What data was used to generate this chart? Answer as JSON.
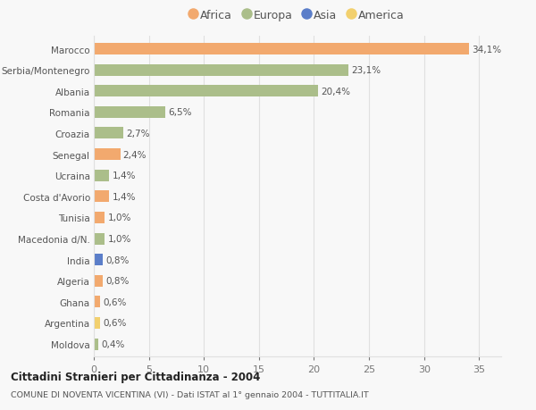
{
  "countries": [
    "Marocco",
    "Serbia/Montenegro",
    "Albania",
    "Romania",
    "Croazia",
    "Senegal",
    "Ucraina",
    "Costa d'Avorio",
    "Tunisia",
    "Macedonia d/N.",
    "India",
    "Algeria",
    "Ghana",
    "Argentina",
    "Moldova"
  ],
  "values": [
    34.1,
    23.1,
    20.4,
    6.5,
    2.7,
    2.4,
    1.4,
    1.4,
    1.0,
    1.0,
    0.8,
    0.8,
    0.6,
    0.6,
    0.4
  ],
  "labels": [
    "34,1%",
    "23,1%",
    "20,4%",
    "6,5%",
    "2,7%",
    "2,4%",
    "1,4%",
    "1,4%",
    "1,0%",
    "1,0%",
    "0,8%",
    "0,8%",
    "0,6%",
    "0,6%",
    "0,4%"
  ],
  "continents": [
    "Africa",
    "Europa",
    "Europa",
    "Europa",
    "Europa",
    "Africa",
    "Europa",
    "Africa",
    "Africa",
    "Europa",
    "Asia",
    "Africa",
    "Africa",
    "America",
    "Europa"
  ],
  "colors": {
    "Africa": "#F2A96E",
    "Europa": "#ABBE8A",
    "Asia": "#5B7EC9",
    "America": "#F2D06E"
  },
  "legend_order": [
    "Africa",
    "Europa",
    "Asia",
    "America"
  ],
  "title": "Cittadini Stranieri per Cittadinanza - 2004",
  "subtitle": "COMUNE DI NOVENTA VICENTINA (VI) - Dati ISTAT al 1° gennaio 2004 - TUTTITALIA.IT",
  "xlim": [
    0,
    37
  ],
  "xticks": [
    0,
    5,
    10,
    15,
    20,
    25,
    30,
    35
  ],
  "background_color": "#f8f8f8",
  "grid_color": "#e0e0e0",
  "bar_height": 0.55
}
